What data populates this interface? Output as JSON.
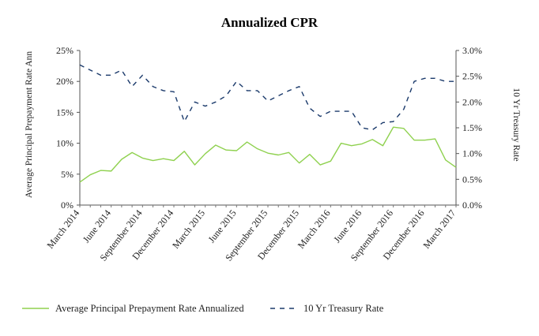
{
  "chart_data": {
    "type": "line",
    "title": "Annualized CPR",
    "ylabel_left": "Average Principal Prepayment Rate Ann",
    "ylabel_right": "10 Yr Treasury Rate",
    "categories": [
      "Mar 2014",
      "Apr 2014",
      "May 2014",
      "Jun 2014",
      "Jul 2014",
      "Aug 2014",
      "Sep 2014",
      "Oct 2014",
      "Nov 2014",
      "Dec 2014",
      "Jan 2015",
      "Feb 2015",
      "Mar 2015",
      "Apr 2015",
      "May 2015",
      "Jun 2015",
      "Jul 2015",
      "Aug 2015",
      "Sep 2015",
      "Oct 2015",
      "Nov 2015",
      "Dec 2015",
      "Jan 2016",
      "Feb 2016",
      "Mar 2016",
      "Apr 2016",
      "May 2016",
      "Jun 2016",
      "Jul 2016",
      "Aug 2016",
      "Sep 2016",
      "Oct 2016",
      "Nov 2016",
      "Dec 2016",
      "Jan 2017",
      "Feb 2017",
      "Mar 2017"
    ],
    "x_tick_labels": [
      "March 2014",
      "June 2014",
      "September 2014",
      "December 2014",
      "March 2015",
      "June 2015",
      "September 2015",
      "December 2015",
      "March 2016",
      "June 2016",
      "September 2016",
      "December 2016",
      "March 2017"
    ],
    "x_tick_indices": [
      0,
      3,
      6,
      9,
      12,
      15,
      18,
      21,
      24,
      27,
      30,
      33,
      36
    ],
    "ylim_left": [
      0,
      25
    ],
    "left_ticks": [
      "0%",
      "5%",
      "10%",
      "15%",
      "20%",
      "25%"
    ],
    "ylim_right": [
      0,
      3.0
    ],
    "right_ticks": [
      "0.0%",
      "0.5%",
      "1.0%",
      "1.5%",
      "2.0%",
      "2.5%",
      "3.0%"
    ],
    "series": [
      {
        "name": "Average Principal Prepayment Rate Annualized",
        "axis": "left",
        "color": "#8fd14f",
        "style": "solid",
        "values": [
          3.7,
          4.9,
          5.6,
          5.5,
          7.4,
          8.5,
          7.6,
          7.2,
          7.5,
          7.2,
          8.7,
          6.5,
          8.3,
          9.7,
          8.9,
          8.8,
          10.2,
          9.1,
          8.4,
          8.1,
          8.5,
          6.8,
          8.2,
          6.5,
          7.1,
          10.0,
          9.6,
          9.9,
          10.6,
          9.6,
          12.6,
          12.4,
          10.5,
          10.5,
          10.7,
          7.3,
          6.1
        ]
      },
      {
        "name": "10 Yr Treasury Rate",
        "axis": "right",
        "color": "#1b3a6b",
        "style": "dashed",
        "values": [
          2.72,
          2.62,
          2.52,
          2.52,
          2.62,
          2.3,
          2.52,
          2.3,
          2.22,
          2.2,
          1.62,
          2.0,
          1.92,
          2.0,
          2.12,
          2.4,
          2.22,
          2.22,
          2.02,
          2.12,
          2.22,
          2.3,
          1.88,
          1.72,
          1.82,
          1.82,
          1.82,
          1.5,
          1.46,
          1.6,
          1.62,
          1.86,
          2.4,
          2.46,
          2.46,
          2.4,
          2.4
        ]
      }
    ],
    "legend": {
      "position": "bottom-left"
    }
  }
}
